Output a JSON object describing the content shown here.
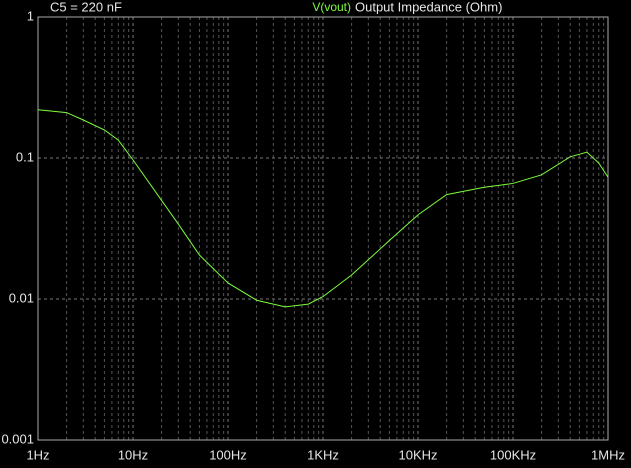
{
  "chart_data": {
    "type": "line",
    "annotation": "C5 = 220 nF",
    "title": "Output Impedance (Ohm)",
    "x_log": true,
    "y_log": true,
    "grid": true,
    "xlim": [
      1,
      1000000
    ],
    "ylim": [
      0.001,
      1
    ],
    "xticks": [
      {
        "value": 1,
        "label": "1Hz"
      },
      {
        "value": 10,
        "label": "10Hz"
      },
      {
        "value": 100,
        "label": "100Hz"
      },
      {
        "value": 1000,
        "label": "1KHz"
      },
      {
        "value": 10000,
        "label": "10KHz"
      },
      {
        "value": 100000,
        "label": "100KHz"
      },
      {
        "value": 1000000,
        "label": "1MHz"
      }
    ],
    "yticks": [
      0.001,
      0.01,
      0.1,
      1
    ],
    "x": [
      1,
      2,
      3,
      5,
      7,
      10,
      20,
      30,
      50,
      100,
      200,
      400,
      700,
      1000,
      2000,
      5000,
      10000,
      20000,
      50000,
      100000,
      200000,
      400000,
      600000,
      800000,
      1000000
    ],
    "series": [
      {
        "name": "V(vout)",
        "color": "#7cfc3c",
        "values": [
          0.22,
          0.21,
          0.186,
          0.158,
          0.134,
          0.097,
          0.05,
          0.034,
          0.0205,
          0.013,
          0.0098,
          0.0088,
          0.0092,
          0.0104,
          0.0148,
          0.026,
          0.0395,
          0.055,
          0.062,
          0.066,
          0.076,
          0.102,
          0.11,
          0.092,
          0.073
        ]
      }
    ]
  }
}
